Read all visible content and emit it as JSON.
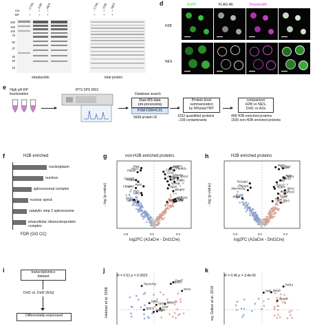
{
  "panel_c": {
    "mw_markers": [
      "250",
      "150",
      "100",
      "75",
      "50",
      "37",
      "25",
      "20",
      "15"
    ],
    "lane_labels": [
      "CTRL",
      "H2B",
      "NES",
      "CTRL",
      "H2B",
      "NES"
    ],
    "row_cre": "Cre",
    "row_bp": "BP",
    "cre_signs": [
      "-",
      "+",
      "+",
      "-",
      "+",
      "+"
    ],
    "bp_signs": [
      "+",
      "+",
      "+",
      "+",
      "+",
      "+"
    ],
    "label_left": "streptavidin",
    "label_right": "total protein"
  },
  "panel_d": {
    "letter": "d",
    "columns": [
      "EGFP",
      "FLAG-Ab",
      "Streptavidin",
      ""
    ],
    "rows": [
      "H2B",
      "NES"
    ]
  },
  "panel_e": {
    "letter": "e",
    "step1": "High pH-RP\nfractionation",
    "instrument": "RTS SPS MS3",
    "db_title": "Database search",
    "db_box": "Raw MS data\npre-processing",
    "fdr": "PSM FDR=0.01",
    "protein_count": "5668 protein ID",
    "summ_box": "Protein-level\nsummarization\nby MSstatsTMT",
    "quant_line1": "2332 quantified proteins",
    "quant_line2": "- 239 contaminants",
    "comp_box": "comparison\nH2B vs NES,\nDrd1 vs A2a",
    "enr_line1": "458 H2B enriched proteins",
    "enr_line2": "1535 non-H2B enriched proteins"
  },
  "panel_f": {
    "letter": "f",
    "title": "H2B enriched",
    "xlabel": "FDR (GO CC)",
    "bars": [
      {
        "label": "nucleoplasm",
        "value": 1.0
      },
      {
        "label": "nucleus",
        "value": 0.9
      },
      {
        "label": "spliceosomal complex",
        "value": 0.55
      },
      {
        "label": "nuclear speck",
        "value": 0.45
      },
      {
        "label": "catalytic step 2 spliceosome",
        "value": 0.42
      },
      {
        "label": "intracellular ribonucleoprotein\ncomplex",
        "value": 0.4
      }
    ]
  },
  "panel_g": {
    "letter": "g",
    "title": "non-H2B enriched proteins",
    "xlabel": "log2FC (A2aCre - Drd1Cre)",
    "ylabel": "- log (p-value)",
    "xticks": [
      "-0.5",
      "0.0",
      "0.5"
    ],
    "labels": [
      "Hax1",
      "Drd1",
      "Chmp4b",
      "Ppil4",
      "Atp13",
      "Rtn4",
      "Gpsm1",
      "Pcnk1n",
      "Ptg1",
      "Cacng8",
      "Pde1b",
      "Ugt1",
      "Pip4k2c",
      "Dnajc4",
      "Cyb5r1",
      "Apmap",
      "Adora2a",
      "Nos1",
      "Aldh1a1",
      "Rasgrp2",
      "Gnal",
      "Rgs9",
      "Cadm2",
      "Dgkg",
      "Mtfp2",
      "Mdca",
      "Pkcg",
      "Ap1s2",
      "Kcnb1",
      "Nefl"
    ]
  },
  "panel_h": {
    "letter": "h",
    "title": "H2B enriched proteins",
    "xlabel": "log2FC (A2aCre - Drd1Cre)",
    "ylabel": "- log (p-value)",
    "xticks": [
      "-0.3",
      "0.0",
      "0.3"
    ],
    "labels": [
      "Rbl26",
      "Macroh2a2",
      "Lbr",
      "Rps25",
      "Tor1aip1",
      "H2ac4",
      "Tmp1",
      "Rps16",
      "Rps10",
      "Prcb",
      "Tmx3",
      "Fxr1",
      "Rsc3",
      "Gpd1l",
      "Nt5c",
      "Mdh1",
      "Fabp4",
      "Ptgds",
      "Sfxn1",
      "Rsp12"
    ]
  },
  "panel_i": {
    "letter": "i",
    "box1": "transcriptomics\ndataset",
    "compare": "Drd1 vs. Drd2 (A2a)",
    "box2": "Differentially-expressed"
  },
  "panel_j": {
    "letter": "j",
    "ylabel": "Heiman et al. 2008",
    "stat": "R = 0.61 p = 0.0023",
    "labels": [
      "Nrm1",
      "Sfxn1",
      "Fxyd7",
      "Spon1",
      "Gnal",
      "Tomm70a",
      "Gnpps",
      "Gpd1",
      "Dgka",
      "Atp1b1",
      "Dgkz"
    ]
  },
  "panel_k": {
    "letter": "k",
    "ylabel": "eq. Gokce et al. 2016",
    "stat": "R = 0.46 p = 3.4e-06",
    "labels": [
      "Drd1a",
      "Nefl",
      "Ap3d1",
      "Bai1b"
    ]
  },
  "colors": {
    "blue": "#8a9fcc",
    "red": "#d59c8e",
    "grey": "#bcbcbc",
    "green": "#3fcf3f",
    "magenta": "#d63fd6",
    "fdr_box": "#dbe6f3"
  }
}
